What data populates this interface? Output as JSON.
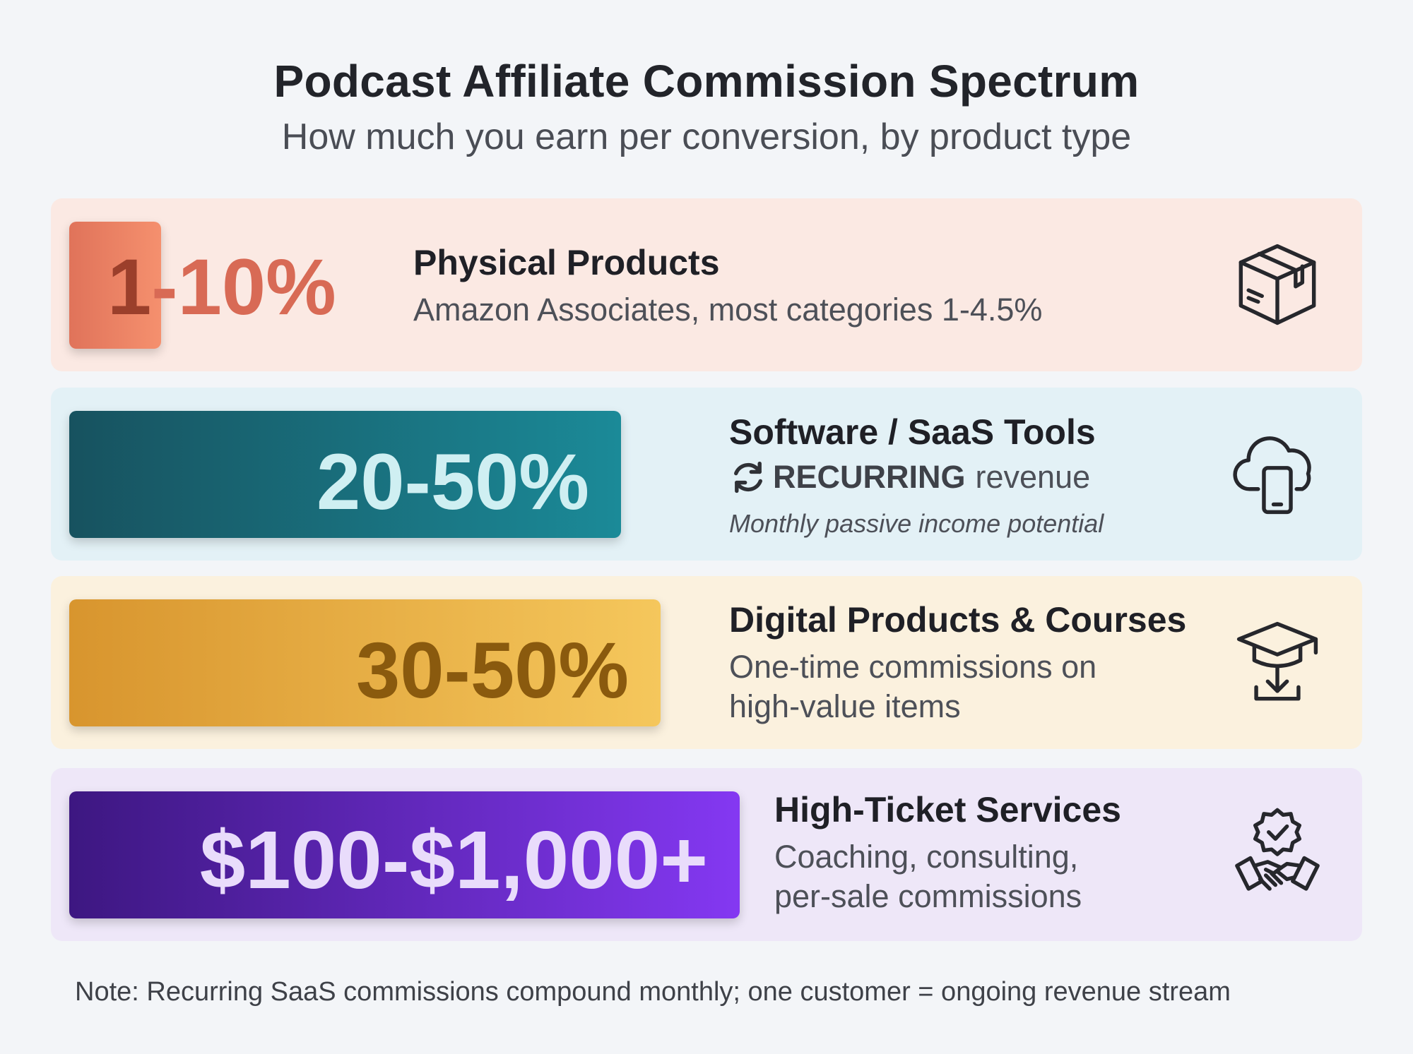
{
  "header": {
    "title": "Podcast Affiliate Commission Spectrum",
    "subtitle": "How much you earn per conversion, by product type"
  },
  "rows": [
    {
      "value_lead": "1",
      "value_rest": "-10%",
      "title": "Physical Products",
      "description": "Amazon Associates, most categories 1-4.5%",
      "icon": "package-box-icon",
      "color": "#e0735a"
    },
    {
      "value": "20-50%",
      "title": "Software / SaaS Tools",
      "recurring_strong": "RECURRING",
      "recurring_rest": "revenue",
      "note": "Monthly passive income potential",
      "icon": "cloud-phone-icon",
      "color": "#1b8a98"
    },
    {
      "value": "30-50%",
      "title": "Digital Products & Courses",
      "description_lines": [
        "One-time commissions on",
        "high-value items"
      ],
      "icon": "graduation-cap-download-icon",
      "color": "#f5c75c"
    },
    {
      "value": "$100-$1,000+",
      "title": "High-Ticket Services",
      "description_lines": [
        "Coaching, consulting,",
        "per-sale commissions"
      ],
      "icon": "handshake-badge-icon",
      "color": "#8438f2"
    }
  ],
  "footer": {
    "note": "Note: Recurring SaaS commissions compound monthly; one customer = ongoing revenue stream"
  }
}
